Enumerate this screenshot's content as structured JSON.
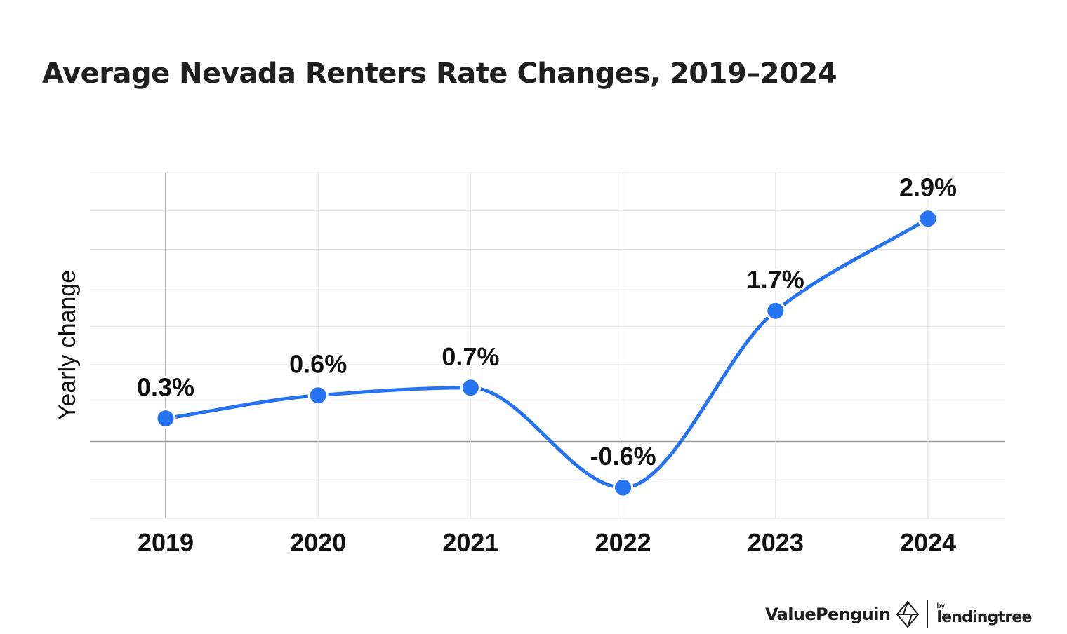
{
  "header": {
    "title": "Average Nevada Renters Rate Changes, 2019–2024"
  },
  "chart_data": {
    "type": "line",
    "title": "Average Nevada Renters Rate Changes, 2019–2024",
    "xlabel": "",
    "ylabel": "Yearly change",
    "categories": [
      "2019",
      "2020",
      "2021",
      "2022",
      "2023",
      "2024"
    ],
    "series": [
      {
        "values": [
          0.3,
          0.6,
          0.7,
          -0.6,
          1.7,
          2.9
        ],
        "value_labels": [
          "0.3%",
          "0.6%",
          "0.7%",
          "-0.6%",
          "1.7%",
          "2.9%"
        ]
      }
    ],
    "ylim": [
      -1.0,
      3.5
    ],
    "grid": true,
    "legend": "none",
    "smooth": true,
    "colors": {
      "line": "#2673f2",
      "grid": "#e2e2e2",
      "zero_line": "#9a9a9a",
      "text": "#111111"
    }
  },
  "branding": {
    "name": "ValuePenguin",
    "by": "by",
    "partner": "lendingtree",
    "logo_icon": "valuepenguin-logo-icon"
  }
}
